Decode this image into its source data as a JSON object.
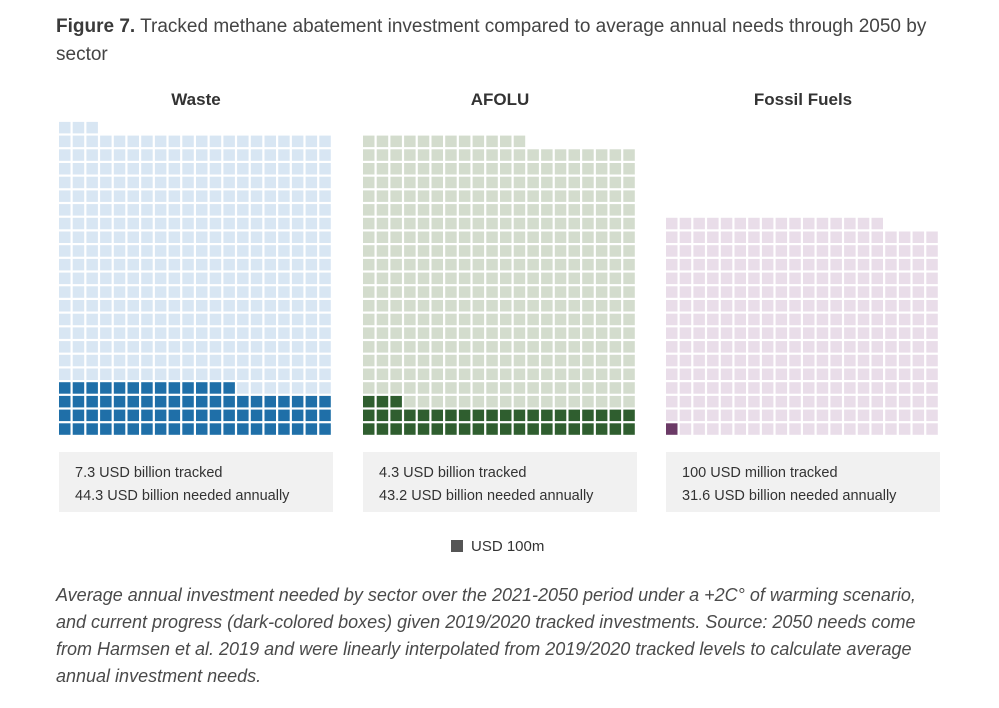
{
  "figure": {
    "label": "Figure 7.",
    "title": "Tracked methane abatement investment compared to average annual needs through 2050 by sector"
  },
  "legend": {
    "label": "USD 100m"
  },
  "caption": "Average annual investment needed by sector over the 2021-2050 period under a +2C° of warming scenario, and current progress (dark-colored boxes) given 2019/2020 tracked investments. Source: 2050 needs come from Harmsen et al. 2019 and were linearly interpolated from 2019/2020 tracked levels to calculate average annual investment needs.",
  "chart_data": {
    "type": "waffle",
    "unit_value_usd_millions": 100,
    "columns_per_panel": 20,
    "panels": [
      {
        "name": "Waste",
        "tracked_units": 73,
        "needed_units": 443,
        "tracked_text": "7.3 USD billion tracked",
        "needed_text": "44.3 USD billion needed annually",
        "colors": {
          "tracked": "#1f6fa8",
          "needed": "#d8e6f3"
        }
      },
      {
        "name": "AFOLU",
        "tracked_units": 43,
        "needed_units": 432,
        "tracked_text": "4.3 USD billion tracked",
        "needed_text": "43.2 USD billion needed annually",
        "colors": {
          "tracked": "#2f5e2f",
          "needed": "#d3dccd"
        }
      },
      {
        "name": "Fossil Fuels",
        "tracked_units": 1,
        "needed_units": 316,
        "tracked_text": "100 USD million tracked",
        "needed_text": "31.6 USD billion needed annually",
        "colors": {
          "tracked": "#6b3a66",
          "needed": "#e9dde9"
        }
      }
    ]
  }
}
